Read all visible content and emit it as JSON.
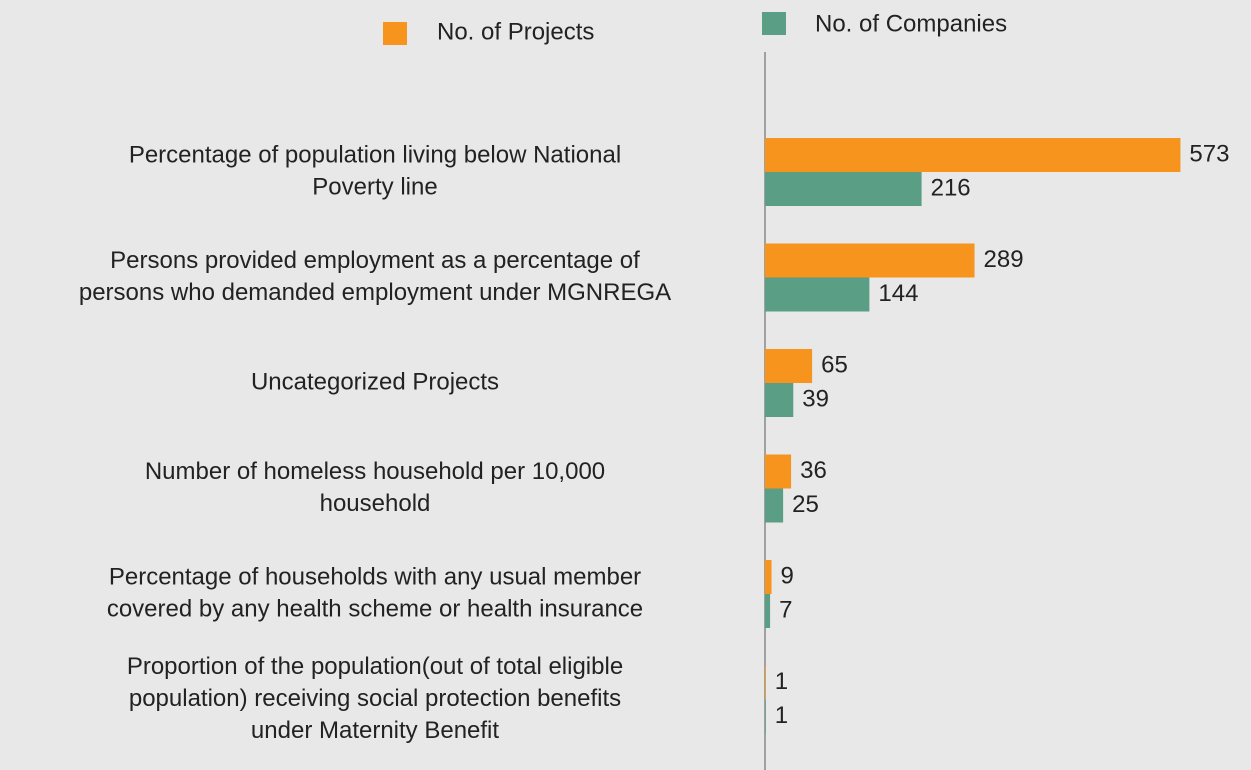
{
  "chart_data": {
    "type": "hbar",
    "categories": [
      [
        "Percentage of population living below National",
        "Poverty line"
      ],
      [
        "Persons provided employment as a percentage of",
        "persons who demanded employment under MGNREGA"
      ],
      [
        "Uncategorized Projects"
      ],
      [
        "Number of homeless household per 10,000",
        "household"
      ],
      [
        "Percentage of households with any usual member",
        "covered by any health scheme or health insurance"
      ],
      [
        "Proportion of the population(out of total eligible",
        "population) receiving social protection benefits",
        "under Maternity Benefit"
      ]
    ],
    "series": [
      {
        "name": "No. of Projects",
        "color": "#f7941d",
        "values": [
          573,
          289,
          65,
          36,
          9,
          1
        ]
      },
      {
        "name": "No. of Companies",
        "color": "#5a9e85",
        "values": [
          216,
          144,
          39,
          25,
          7,
          1
        ]
      }
    ],
    "xlim": [
      0,
      600
    ]
  }
}
